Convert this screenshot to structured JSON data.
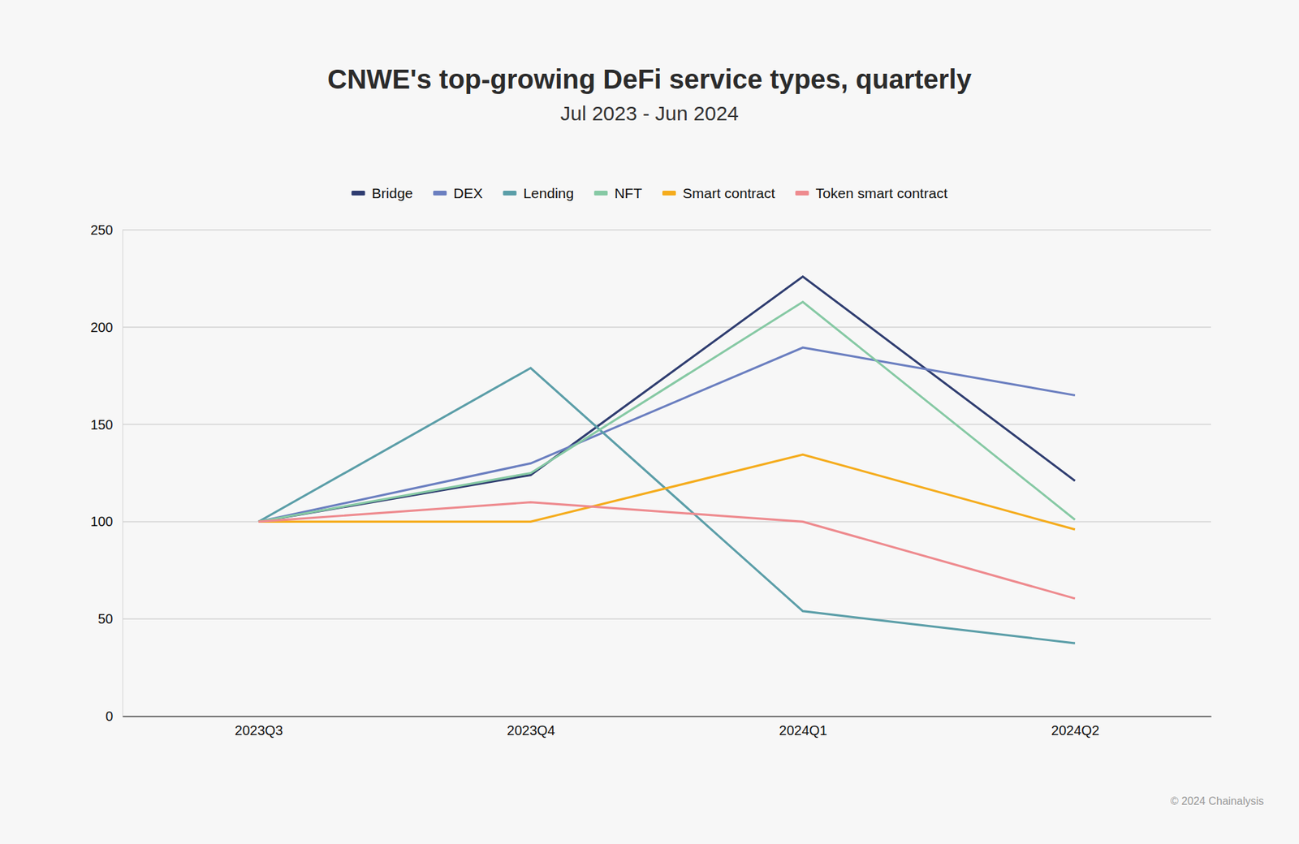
{
  "chart_data": {
    "type": "line",
    "title": "CNWE's top-growing DeFi service types, quarterly",
    "subtitle": "Jul 2023 - Jun 2024",
    "source": "© 2024 Chainalysis",
    "categories": [
      "2023Q3",
      "2023Q4",
      "2024Q1",
      "2024Q2"
    ],
    "series": [
      {
        "name": "Bridge",
        "color": "#2f3d70",
        "values": [
          100,
          124,
          226,
          121
        ]
      },
      {
        "name": "DEX",
        "color": "#6b7fc0",
        "values": [
          100,
          130,
          189.5,
          165
        ]
      },
      {
        "name": "Lending",
        "color": "#5b9ea8",
        "values": [
          100,
          179,
          54,
          37.5
        ]
      },
      {
        "name": "NFT",
        "color": "#86c9a4",
        "values": [
          100,
          125,
          213,
          101
        ]
      },
      {
        "name": "Smart contract",
        "color": "#f5ac1d",
        "values": [
          100,
          100,
          134.5,
          96
        ]
      },
      {
        "name": "Token smart contract",
        "color": "#ee8a8e",
        "values": [
          100,
          110,
          100,
          60.5
        ]
      }
    ],
    "ylim": [
      0,
      250
    ],
    "yticks": [
      0,
      50,
      100,
      150,
      200,
      250
    ],
    "grid": true,
    "legend": "top"
  }
}
